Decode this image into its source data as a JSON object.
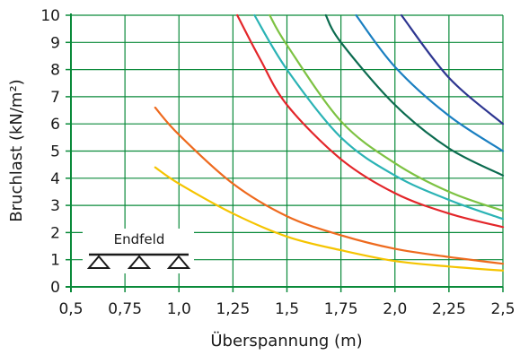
{
  "chart_data": {
    "type": "line",
    "xlabel": "Überspannung (m)",
    "ylabel": "Bruchlast (kN/m²)",
    "xlim": [
      0.5,
      2.5
    ],
    "ylim": [
      0,
      10
    ],
    "x_ticks": [
      "0,5",
      "0,75",
      "1,0",
      "1,25",
      "1,5",
      "1,75",
      "2,0",
      "2,25",
      "2,5"
    ],
    "y_ticks": [
      "0",
      "1",
      "2",
      "3",
      "4",
      "5",
      "6",
      "7",
      "8",
      "9",
      "10"
    ],
    "grid": true,
    "grid_color": "#0a8a3a",
    "inset_label": "Endfeld",
    "series": [
      {
        "color": "#f5c400",
        "points": [
          [
            0.89,
            4.4
          ],
          [
            1.0,
            3.8
          ],
          [
            1.25,
            2.7
          ],
          [
            1.5,
            1.85
          ],
          [
            1.75,
            1.35
          ],
          [
            2.0,
            0.95
          ],
          [
            2.25,
            0.75
          ],
          [
            2.5,
            0.6
          ]
        ]
      },
      {
        "color": "#ee6a1e",
        "points": [
          [
            0.89,
            6.6
          ],
          [
            1.0,
            5.6
          ],
          [
            1.25,
            3.8
          ],
          [
            1.5,
            2.6
          ],
          [
            1.75,
            1.9
          ],
          [
            2.0,
            1.4
          ],
          [
            2.25,
            1.1
          ],
          [
            2.5,
            0.85
          ]
        ]
      },
      {
        "color": "#e3262a",
        "points": [
          [
            1.27,
            10.0
          ],
          [
            1.375,
            8.4
          ],
          [
            1.5,
            6.7
          ],
          [
            1.75,
            4.7
          ],
          [
            2.0,
            3.45
          ],
          [
            2.25,
            2.7
          ],
          [
            2.5,
            2.2
          ]
        ]
      },
      {
        "color": "#2bb3b5",
        "points": [
          [
            1.35,
            10.0
          ],
          [
            1.5,
            8.0
          ],
          [
            1.75,
            5.5
          ],
          [
            2.0,
            4.1
          ],
          [
            2.25,
            3.2
          ],
          [
            2.5,
            2.5
          ]
        ]
      },
      {
        "color": "#7dc242",
        "points": [
          [
            1.42,
            10.0
          ],
          [
            1.5,
            8.9
          ],
          [
            1.75,
            6.1
          ],
          [
            2.0,
            4.55
          ],
          [
            2.25,
            3.5
          ],
          [
            2.5,
            2.8
          ]
        ]
      },
      {
        "color": "#0b6b4f",
        "points": [
          [
            1.68,
            10.0
          ],
          [
            1.75,
            9.0
          ],
          [
            2.0,
            6.7
          ],
          [
            2.25,
            5.1
          ],
          [
            2.5,
            4.1
          ]
        ]
      },
      {
        "color": "#1a7fc1",
        "points": [
          [
            1.82,
            10.0
          ],
          [
            2.0,
            8.1
          ],
          [
            2.25,
            6.3
          ],
          [
            2.5,
            5.0
          ]
        ]
      },
      {
        "color": "#2e3691",
        "points": [
          [
            2.03,
            10.0
          ],
          [
            2.25,
            7.7
          ],
          [
            2.5,
            6.0
          ]
        ]
      }
    ]
  }
}
